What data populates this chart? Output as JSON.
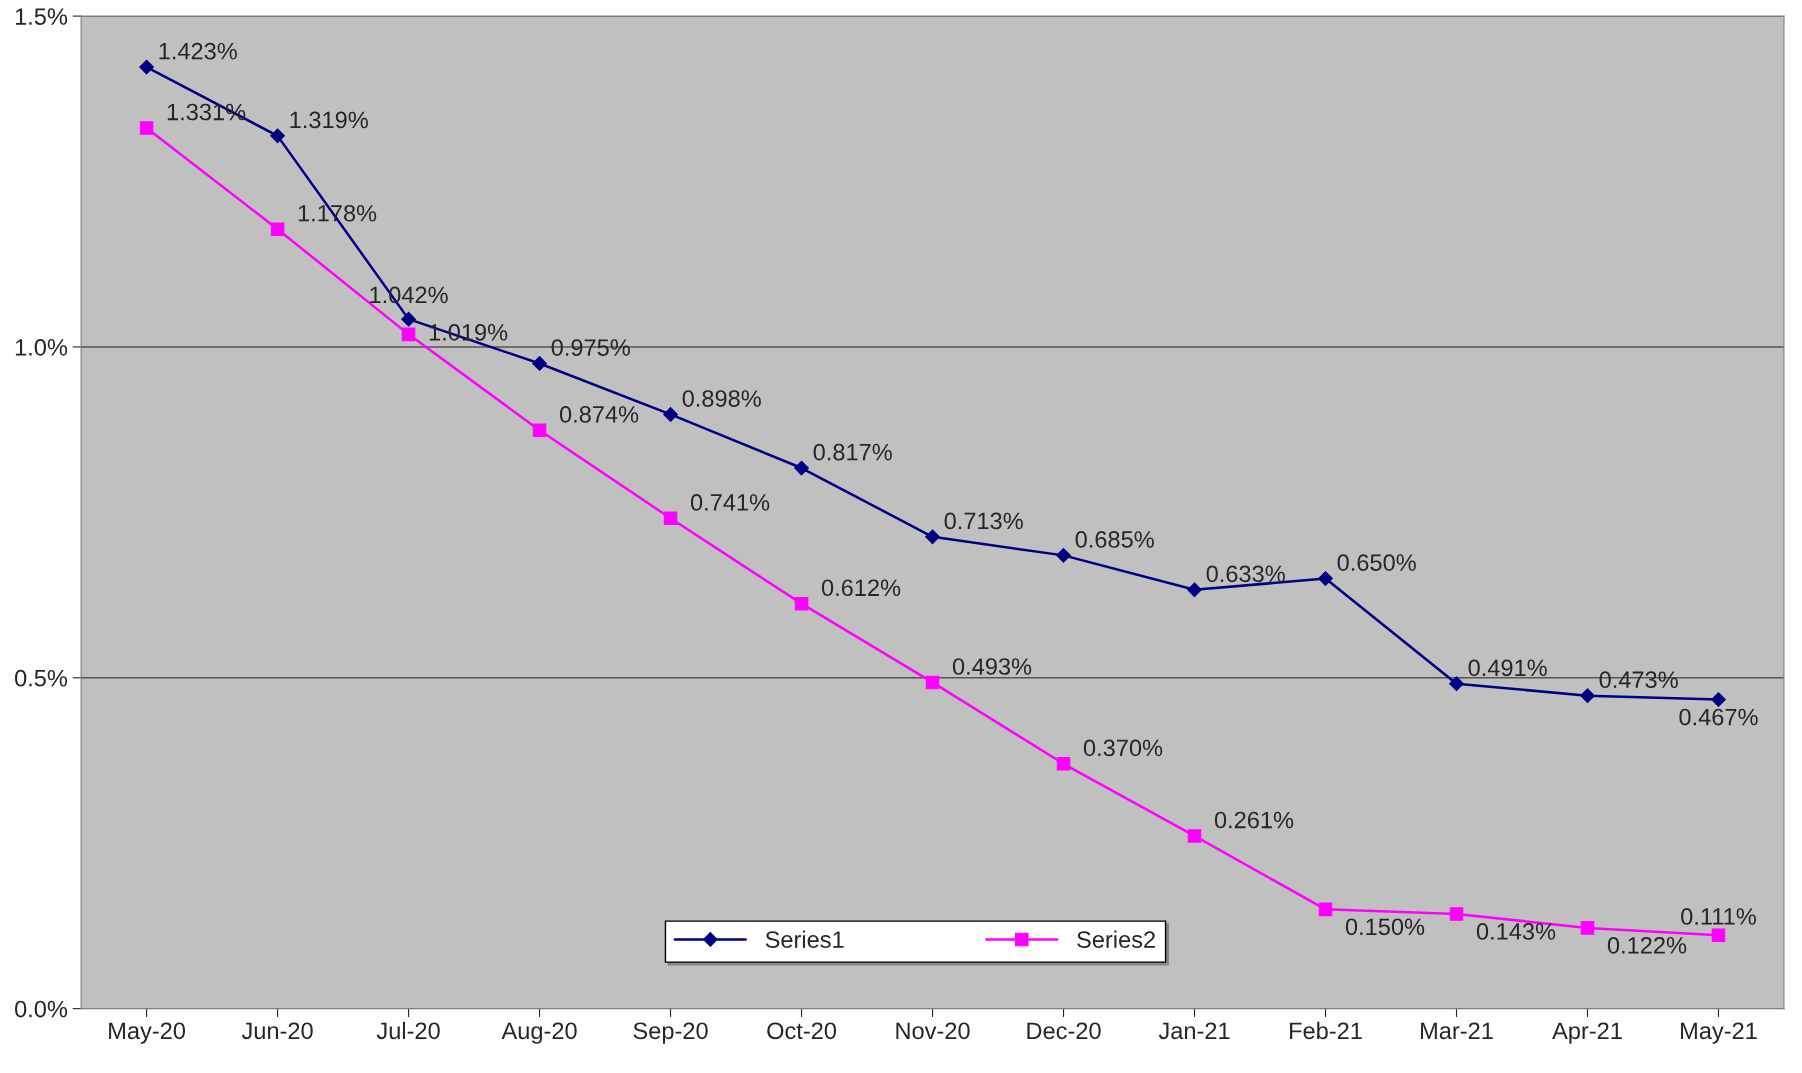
{
  "chart_data": {
    "type": "line",
    "categories": [
      "May-20",
      "Jun-20",
      "Jul-20",
      "Aug-20",
      "Sep-20",
      "Oct-20",
      "Nov-20",
      "Dec-20",
      "Jan-21",
      "Feb-21",
      "Mar-21",
      "Apr-21",
      "May-21"
    ],
    "series": [
      {
        "name": "Series1",
        "color": "#000080",
        "marker": "diamond",
        "values": [
          1.423,
          1.319,
          1.042,
          0.975,
          0.898,
          0.817,
          0.713,
          0.685,
          0.633,
          0.65,
          0.491,
          0.473,
          0.467
        ],
        "value_labels": [
          "1.423%",
          "1.319%",
          "1.042%",
          "0.975%",
          "0.898%",
          "0.817%",
          "0.713%",
          "0.685%",
          "0.633%",
          "0.650%",
          "0.491%",
          "0.473%",
          "0.467%"
        ]
      },
      {
        "name": "Series2",
        "color": "#ff00ff",
        "marker": "square",
        "values": [
          1.331,
          1.178,
          1.019,
          0.874,
          0.741,
          0.612,
          0.493,
          0.37,
          0.261,
          0.15,
          0.143,
          0.122,
          0.111
        ],
        "value_labels": [
          "1.331%",
          "1.178%",
          "1.019%",
          "0.874%",
          "0.741%",
          "0.612%",
          "0.493%",
          "0.370%",
          "0.261%",
          "0.150%",
          "0.143%",
          "0.122%",
          "0.111%"
        ]
      }
    ],
    "ylim": [
      0,
      1.5
    ],
    "yticks": [
      {
        "value": 0,
        "label": "0.0%"
      },
      {
        "value": 0.5,
        "label": "0.5%"
      },
      {
        "value": 1.0,
        "label": "1.0%"
      },
      {
        "value": 1.5,
        "label": "1.5%"
      }
    ],
    "grid": "y",
    "legend": "bottom",
    "line_style": "solid"
  }
}
